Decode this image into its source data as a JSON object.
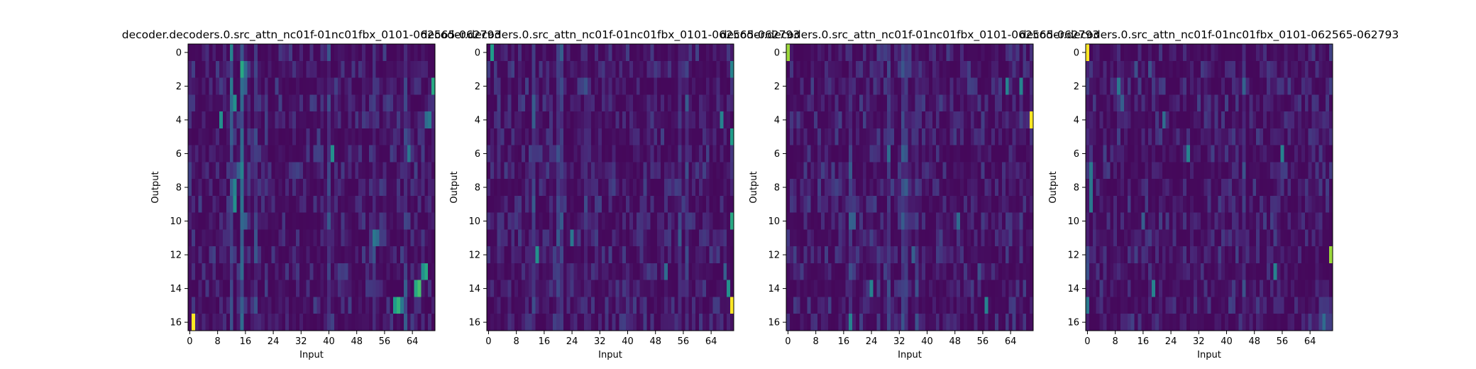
{
  "figure": {
    "background": "#ffffff"
  },
  "colormap": [
    "#440154",
    "#482878",
    "#3e4989",
    "#31688e",
    "#26828e",
    "#1f9e89",
    "#35b779",
    "#6ece58",
    "#b5de2b",
    "#fde725"
  ],
  "chart_data": [
    {
      "type": "heatmap",
      "title": "decoder.decoders.0.src_attn_nc01f-01nc01fbx_0101-062565-062793",
      "xlabel": "Input",
      "ylabel": "Output",
      "n_rows": 17,
      "n_cols": 71,
      "xticks": [
        0,
        8,
        16,
        24,
        32,
        40,
        48,
        56,
        64
      ],
      "yticks": [
        0,
        2,
        4,
        6,
        8,
        10,
        12,
        14,
        16
      ],
      "seed": 11,
      "column_strength": [
        [
          12,
          0.2
        ],
        [
          15,
          0.28
        ],
        [
          19,
          0.08
        ],
        [
          40,
          0.1
        ],
        [
          53,
          0.1
        ],
        [
          62,
          0.1
        ]
      ],
      "cells": [
        [
          0,
          12,
          0.45
        ],
        [
          0,
          5,
          0.12
        ],
        [
          1,
          15,
          0.6
        ],
        [
          1,
          16,
          0.35
        ],
        [
          2,
          70,
          0.6
        ],
        [
          2,
          16,
          0.3
        ],
        [
          3,
          13,
          0.5
        ],
        [
          3,
          12,
          0.35
        ],
        [
          4,
          69,
          0.4
        ],
        [
          4,
          9,
          0.5
        ],
        [
          4,
          68,
          0.35
        ],
        [
          5,
          15,
          0.35
        ],
        [
          6,
          41,
          0.5
        ],
        [
          6,
          63,
          0.4
        ],
        [
          7,
          14,
          0.3
        ],
        [
          8,
          13,
          0.45
        ],
        [
          9,
          13,
          0.5
        ],
        [
          10,
          16,
          0.3
        ],
        [
          11,
          53,
          0.4
        ],
        [
          11,
          54,
          0.35
        ],
        [
          13,
          68,
          0.6
        ],
        [
          13,
          67,
          0.5
        ],
        [
          14,
          66,
          0.7
        ],
        [
          14,
          65,
          0.6
        ],
        [
          15,
          60,
          0.65
        ],
        [
          15,
          59,
          0.55
        ],
        [
          15,
          61,
          0.4
        ],
        [
          16,
          1,
          1.0
        ]
      ]
    },
    {
      "type": "heatmap",
      "title": "decoder.decoders.0.src_attn_nc01f-01nc01fbx_0101-062565-062793",
      "xlabel": "Input",
      "ylabel": "Output",
      "n_rows": 17,
      "n_cols": 71,
      "xticks": [
        0,
        8,
        16,
        24,
        32,
        40,
        48,
        56,
        64
      ],
      "yticks": [
        0,
        2,
        4,
        6,
        8,
        10,
        12,
        14,
        16
      ],
      "seed": 23,
      "column_strength": [
        [
          13,
          0.12
        ],
        [
          20,
          0.15
        ],
        [
          21,
          0.15
        ],
        [
          28,
          0.08
        ],
        [
          55,
          0.1
        ],
        [
          57,
          0.1
        ]
      ],
      "cells": [
        [
          0,
          1,
          0.55
        ],
        [
          1,
          70,
          0.45
        ],
        [
          4,
          67,
          0.45
        ],
        [
          5,
          70,
          0.55
        ],
        [
          10,
          70,
          0.6
        ],
        [
          12,
          14,
          0.5
        ],
        [
          11,
          24,
          0.4
        ],
        [
          14,
          69,
          0.5
        ],
        [
          15,
          70,
          1.0
        ],
        [
          13,
          68,
          0.3
        ],
        [
          13,
          51,
          0.35
        ]
      ]
    },
    {
      "type": "heatmap",
      "title": "decoder.decoders.0.src_attn_nc01f-01nc01fbx_0101-062565-062793",
      "xlabel": "Input",
      "ylabel": "Output",
      "n_rows": 17,
      "n_cols": 71,
      "xticks": [
        0,
        8,
        16,
        24,
        32,
        40,
        48,
        56,
        64
      ],
      "yticks": [
        0,
        2,
        4,
        6,
        8,
        10,
        12,
        14,
        16
      ],
      "seed": 37,
      "column_strength": [
        [
          18,
          0.12
        ],
        [
          29,
          0.12
        ],
        [
          33,
          0.16
        ],
        [
          34,
          0.14
        ],
        [
          37,
          0.08
        ]
      ],
      "cells": [
        [
          0,
          0,
          0.85
        ],
        [
          0,
          27,
          0.15
        ],
        [
          2,
          63,
          0.45
        ],
        [
          2,
          67,
          0.45
        ],
        [
          4,
          70,
          1.0
        ],
        [
          6,
          29,
          0.35
        ],
        [
          6,
          33,
          0.3
        ],
        [
          10,
          19,
          0.3
        ],
        [
          10,
          49,
          0.35
        ],
        [
          12,
          36,
          0.3
        ],
        [
          14,
          24,
          0.45
        ],
        [
          15,
          57,
          0.45
        ],
        [
          16,
          18,
          0.45
        ],
        [
          13,
          55,
          0.25
        ]
      ]
    },
    {
      "type": "heatmap",
      "title": "decoder.decoders.0.src_attn_nc01f-01nc01fbx_0101-062565-062793",
      "xlabel": "Input",
      "ylabel": "Output",
      "n_rows": 17,
      "n_cols": 71,
      "xticks": [
        0,
        8,
        16,
        24,
        32,
        40,
        48,
        56,
        64
      ],
      "yticks": [
        0,
        2,
        4,
        6,
        8,
        10,
        12,
        14,
        16
      ],
      "seed": 53,
      "column_strength": [
        [
          45,
          0.1
        ],
        [
          0,
          0.05
        ]
      ],
      "cells": [
        [
          0,
          0,
          1.0
        ],
        [
          2,
          9,
          0.4
        ],
        [
          3,
          10,
          0.3
        ],
        [
          4,
          22,
          0.35
        ],
        [
          6,
          29,
          0.45
        ],
        [
          6,
          56,
          0.45
        ],
        [
          7,
          1,
          0.4
        ],
        [
          8,
          1,
          0.4
        ],
        [
          9,
          1,
          0.4
        ],
        [
          10,
          16,
          0.3
        ],
        [
          12,
          70,
          0.85
        ],
        [
          13,
          54,
          0.45
        ],
        [
          14,
          19,
          0.45
        ],
        [
          15,
          0,
          0.4
        ],
        [
          16,
          68,
          0.35
        ],
        [
          1,
          14,
          0.25
        ],
        [
          1,
          18,
          0.25
        ]
      ]
    }
  ]
}
